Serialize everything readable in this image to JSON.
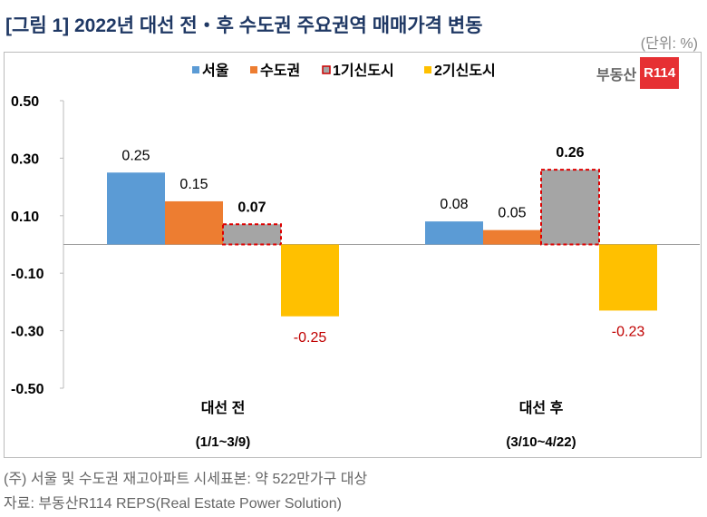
{
  "title": "[그림 1] 2022년 대선 전・후 수도권 주요권역 매매가격 변동",
  "unit": "(단위: %)",
  "logo": {
    "text": "부동산",
    "badge": "R114"
  },
  "notes": [
    "(주) 서울 및 수도권 재고아파트 시세표본: 약 522만가구 대상",
    "자료: 부동산R114 REPS(Real Estate Power Solution)"
  ],
  "chart_data": {
    "type": "bar",
    "categories": [
      [
        "대선 전",
        "(1/1~3/9)"
      ],
      [
        "대선 후",
        "(3/10~4/22)"
      ]
    ],
    "series": [
      {
        "name": "서울",
        "values": [
          0.25,
          0.08
        ],
        "color": "#5b9bd5"
      },
      {
        "name": "수도권",
        "values": [
          0.15,
          0.05
        ],
        "color": "#ed7d31"
      },
      {
        "name": "1기신도시",
        "values": [
          0.07,
          0.26
        ],
        "color": "#a5a5a5",
        "dashed": true
      },
      {
        "name": "2기신도시",
        "values": [
          -0.25,
          -0.23
        ],
        "color": "#ffc000"
      }
    ],
    "ylim": [
      -0.5,
      0.5
    ],
    "yticks": [
      "0.50",
      "0.30",
      "0.10",
      "-0.10",
      "-0.30",
      "-0.50"
    ],
    "ytick_values": [
      0.5,
      0.3,
      0.1,
      -0.1,
      -0.3,
      -0.5
    ],
    "legend": "top"
  }
}
